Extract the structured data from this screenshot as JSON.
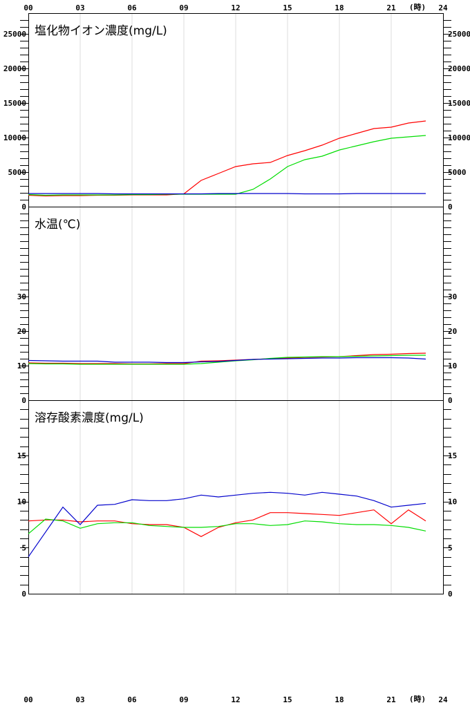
{
  "chart_data": {
    "type": "line",
    "x_ticks": [
      "00",
      "03",
      "06",
      "09",
      "12",
      "15",
      "18",
      "21",
      "24"
    ],
    "x_unit": "(時)",
    "series_colors": [
      "#ff0000",
      "#00dd00",
      "#0000cc"
    ],
    "panels": [
      {
        "title": "塩化物イオン濃度(mg/L)",
        "ylim": [
          0,
          28000
        ],
        "y_ticks": [
          0,
          5000,
          10000,
          15000,
          20000,
          25000
        ],
        "minor_step": 1000,
        "series": [
          {
            "values": [
              1650,
              1550,
              1600,
              1600,
              1650,
              1650,
              1700,
              1700,
              1700,
              1850,
              3800,
              4800,
              5800,
              6200,
              6400,
              7400,
              8100,
              8900,
              9900,
              10600,
              11300,
              11500,
              12100,
              12400
            ]
          },
          {
            "values": [
              1750,
              1650,
              1700,
              1700,
              1700,
              1700,
              1750,
              1750,
              1800,
              1800,
              1800,
              1800,
              1800,
              2500,
              4000,
              5800,
              6800,
              7300,
              8200,
              8800,
              9400,
              9900,
              10100,
              10300
            ]
          },
          {
            "values": [
              1900,
              1900,
              1900,
              1900,
              1900,
              1850,
              1850,
              1850,
              1850,
              1850,
              1850,
              1900,
              1900,
              1900,
              1900,
              1900,
              1850,
              1850,
              1850,
              1900,
              1900,
              1900,
              1900,
              1900
            ]
          }
        ]
      },
      {
        "title": "水温(℃)",
        "ylim": [
          0,
          56
        ],
        "y_ticks": [
          0,
          10,
          20,
          30
        ],
        "minor_step": 2,
        "series": [
          {
            "values": [
              10.8,
              10.7,
              10.7,
              10.6,
              10.6,
              10.6,
              10.5,
              10.5,
              10.6,
              10.6,
              11.3,
              11.4,
              11.6,
              11.8,
              12.0,
              12.2,
              12.4,
              12.5,
              12.6,
              12.9,
              13.2,
              13.3,
              13.5,
              13.6
            ]
          },
          {
            "values": [
              10.6,
              10.5,
              10.5,
              10.4,
              10.4,
              10.4,
              10.4,
              10.4,
              10.4,
              10.4,
              10.6,
              11.0,
              11.4,
              11.7,
              12.1,
              12.4,
              12.5,
              12.6,
              12.6,
              12.7,
              12.8,
              12.9,
              13.0,
              13.0
            ]
          },
          {
            "values": [
              11.5,
              11.4,
              11.3,
              11.3,
              11.3,
              11.0,
              11.0,
              11.0,
              10.9,
              10.9,
              11.1,
              11.2,
              11.5,
              11.8,
              11.9,
              12.0,
              12.1,
              12.2,
              12.2,
              12.3,
              12.3,
              12.3,
              12.2,
              11.9
            ]
          }
        ]
      },
      {
        "title": "溶存酸素濃度(mg/L)",
        "ylim": [
          0,
          21
        ],
        "y_ticks": [
          0,
          5,
          10,
          15
        ],
        "minor_step": 1,
        "series": [
          {
            "values": [
              7.9,
              8.0,
              8.0,
              7.8,
              7.9,
              7.9,
              7.6,
              7.5,
              7.5,
              7.2,
              6.2,
              7.2,
              7.7,
              8.0,
              8.8,
              8.8,
              8.7,
              8.6,
              8.5,
              8.8,
              9.1,
              7.6,
              9.1,
              7.9
            ]
          },
          {
            "values": [
              6.5,
              8.1,
              7.9,
              7.1,
              7.6,
              7.7,
              7.7,
              7.4,
              7.3,
              7.2,
              7.2,
              7.3,
              7.6,
              7.6,
              7.4,
              7.5,
              7.9,
              7.8,
              7.6,
              7.5,
              7.5,
              7.4,
              7.2,
              6.8
            ]
          },
          {
            "values": [
              4.0,
              6.7,
              9.4,
              7.5,
              9.6,
              9.7,
              10.2,
              10.1,
              10.1,
              10.3,
              10.7,
              10.5,
              10.7,
              10.9,
              11.0,
              10.9,
              10.7,
              11.0,
              10.8,
              10.6,
              10.1,
              9.4,
              9.6,
              9.8
            ]
          }
        ]
      }
    ]
  }
}
